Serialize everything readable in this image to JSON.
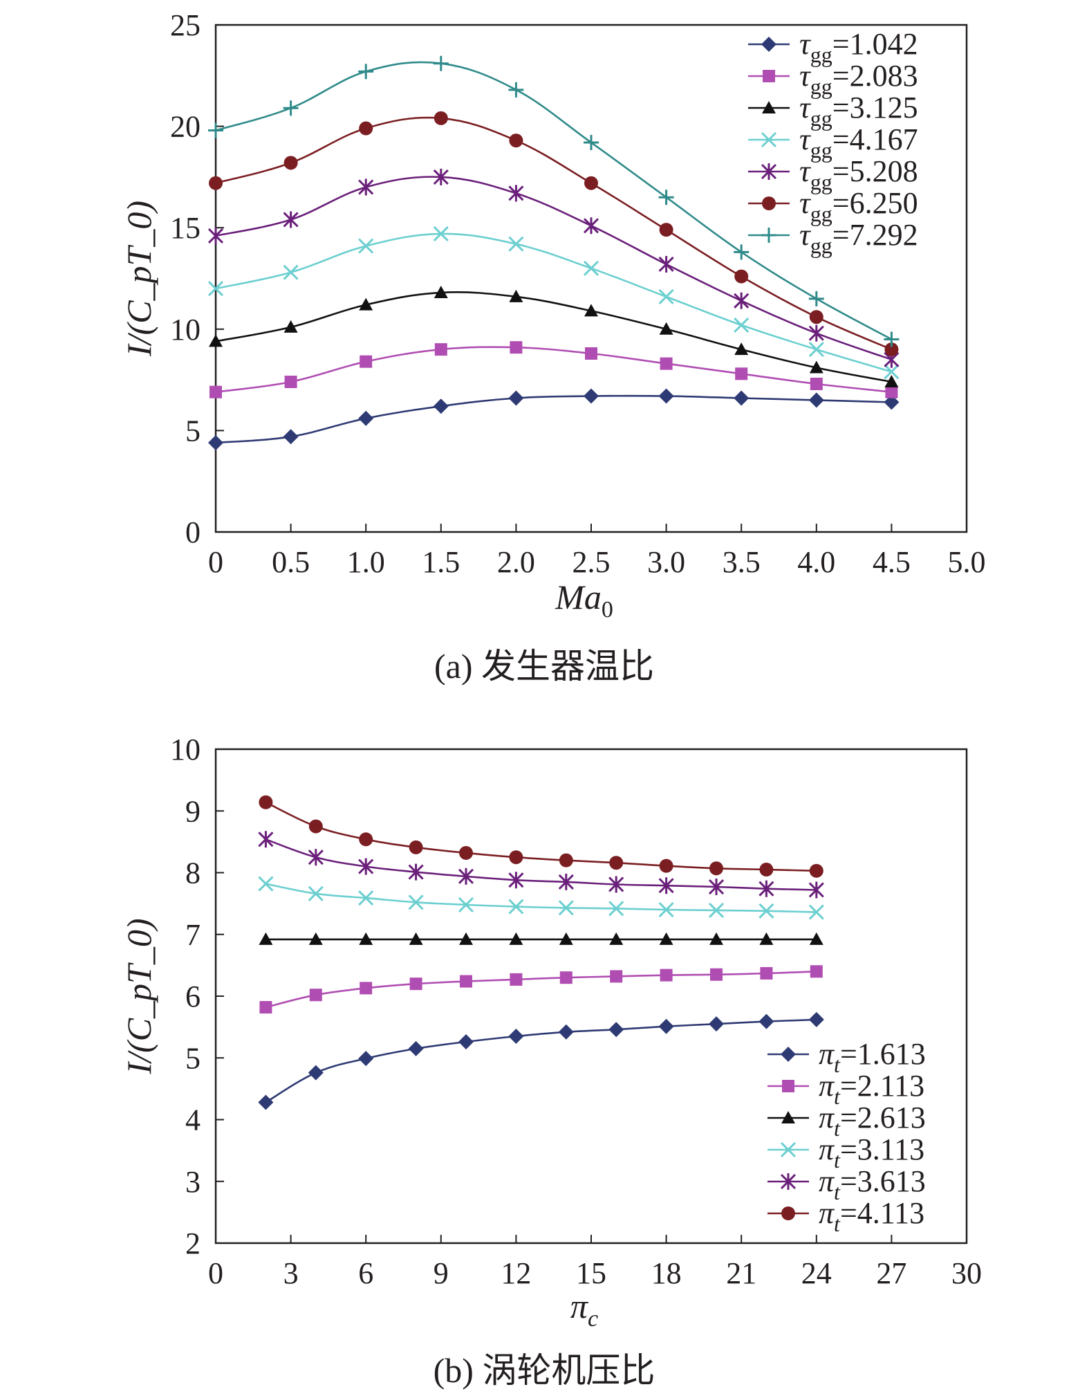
{
  "chart_data": [
    {
      "type": "line",
      "caption": "(a) 发生器温比",
      "xlabel": "Ma",
      "xlabel_sub": "0",
      "ylabel": "I/(C_pT_0)",
      "xlim": [
        0,
        5.0
      ],
      "ylim": [
        0,
        25
      ],
      "xticks": [
        "0",
        "0.5",
        "1.0",
        "1.5",
        "2.0",
        "2.5",
        "3.0",
        "3.5",
        "4.0",
        "4.5",
        "5.0"
      ],
      "yticks": [
        "0",
        "5",
        "10",
        "15",
        "20",
        "25"
      ],
      "grid": false,
      "legend_position": "top-right",
      "legend_symbol": "τ",
      "legend_sub": "gg",
      "x": [
        0,
        0.5,
        1.0,
        1.5,
        2.0,
        2.5,
        3.0,
        3.5,
        4.0,
        4.5
      ],
      "series": [
        {
          "name": "=1.042",
          "color": "#2e3a73",
          "marker": "diamond",
          "values": [
            4.4,
            4.7,
            5.6,
            6.2,
            6.6,
            6.7,
            6.7,
            6.6,
            6.5,
            6.4
          ]
        },
        {
          "name": "=2.083",
          "color": "#b04db2",
          "marker": "square",
          "values": [
            6.9,
            7.4,
            8.4,
            9.0,
            9.1,
            8.8,
            8.3,
            7.8,
            7.3,
            6.9
          ]
        },
        {
          "name": "=3.125",
          "color": "#111111",
          "marker": "triangle",
          "values": [
            9.4,
            10.1,
            11.2,
            11.8,
            11.6,
            10.9,
            10.0,
            9.0,
            8.1,
            7.4
          ]
        },
        {
          "name": "=4.167",
          "color": "#6ccfd0",
          "marker": "x",
          "values": [
            12.0,
            12.8,
            14.1,
            14.7,
            14.2,
            13.0,
            11.6,
            10.2,
            9.0,
            7.9
          ]
        },
        {
          "name": "=5.208",
          "color": "#6a1f7a",
          "marker": "star",
          "values": [
            14.6,
            15.4,
            17.0,
            17.5,
            16.7,
            15.1,
            13.2,
            11.4,
            9.8,
            8.5
          ]
        },
        {
          "name": "=6.250",
          "color": "#7b1e22",
          "marker": "circle",
          "values": [
            17.2,
            18.2,
            19.9,
            20.4,
            19.3,
            17.2,
            14.9,
            12.6,
            10.6,
            9.0
          ]
        },
        {
          "name": "=7.292",
          "color": "#2f8a8a",
          "marker": "plus",
          "values": [
            19.8,
            20.9,
            22.7,
            23.1,
            21.8,
            19.2,
            16.5,
            13.8,
            11.5,
            9.5
          ]
        }
      ]
    },
    {
      "type": "line",
      "caption": "(b) 涡轮机压比",
      "xlabel": "π",
      "xlabel_sub": "c",
      "ylabel": "I/(C_pT_0)",
      "xlim": [
        0,
        30
      ],
      "ylim": [
        2,
        10
      ],
      "xticks": [
        "0",
        "3",
        "6",
        "9",
        "12",
        "15",
        "18",
        "21",
        "24",
        "27",
        "30"
      ],
      "yticks": [
        "2",
        "3",
        "4",
        "5",
        "6",
        "7",
        "8",
        "9",
        "10"
      ],
      "grid": false,
      "legend_position": "bottom-right",
      "legend_symbol": "π",
      "legend_sub": "t",
      "x": [
        2,
        4,
        6,
        8,
        10,
        12,
        14,
        16,
        18,
        20,
        22,
        24
      ],
      "series": [
        {
          "name": "=1.613",
          "color": "#2e3a73",
          "marker": "diamond",
          "values": [
            4.28,
            4.76,
            4.99,
            5.15,
            5.26,
            5.35,
            5.42,
            5.46,
            5.51,
            5.55,
            5.59,
            5.62
          ]
        },
        {
          "name": "=2.113",
          "color": "#b04db2",
          "marker": "square",
          "values": [
            5.82,
            6.02,
            6.13,
            6.2,
            6.24,
            6.27,
            6.3,
            6.32,
            6.34,
            6.35,
            6.37,
            6.4
          ]
        },
        {
          "name": "=2.613",
          "color": "#111111",
          "marker": "triangle",
          "values": [
            6.92,
            6.92,
            6.92,
            6.92,
            6.92,
            6.92,
            6.92,
            6.92,
            6.92,
            6.92,
            6.92,
            6.92
          ]
        },
        {
          "name": "=3.113",
          "color": "#6ccfd0",
          "marker": "x",
          "values": [
            7.82,
            7.66,
            7.59,
            7.52,
            7.48,
            7.45,
            7.43,
            7.42,
            7.4,
            7.39,
            7.38,
            7.36
          ]
        },
        {
          "name": "=3.613",
          "color": "#6a1f7a",
          "marker": "star",
          "values": [
            8.54,
            8.25,
            8.1,
            8.01,
            7.94,
            7.88,
            7.85,
            7.81,
            7.79,
            7.77,
            7.74,
            7.72
          ]
        },
        {
          "name": "=4.113",
          "color": "#7b1e22",
          "marker": "circle",
          "values": [
            9.14,
            8.75,
            8.54,
            8.41,
            8.32,
            8.25,
            8.2,
            8.16,
            8.11,
            8.07,
            8.05,
            8.03
          ]
        }
      ]
    }
  ]
}
